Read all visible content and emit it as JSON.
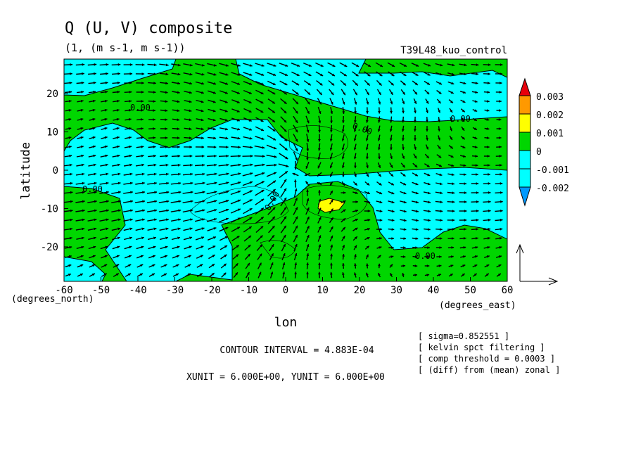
{
  "chart_data": {
    "type": "heatmap",
    "title": "Q (U, V) composite",
    "subtitle": "(1, (m s-1, m s-1))",
    "run_label": "T39L48_kuo_control",
    "xlabel": "lon",
    "ylabel": "latitude",
    "x_unit_label": "(degrees_east)",
    "y_unit_label": "(degrees_north)",
    "xlim": [
      -60,
      60
    ],
    "ylim": [
      -29,
      29
    ],
    "x_ticks": [
      -60,
      -50,
      -40,
      -30,
      -20,
      -10,
      0,
      10,
      20,
      30,
      40,
      50,
      60
    ],
    "x_tick_labels": [
      "-60",
      "-50",
      "-40",
      "-30",
      "-20",
      "-10",
      "0",
      "10",
      "20",
      "30",
      "40",
      "50",
      "60"
    ],
    "y_ticks": [
      20,
      10,
      0,
      -10,
      -20
    ],
    "y_tick_labels": [
      "20",
      "10",
      "0",
      "-10",
      "-20"
    ],
    "colorbar": {
      "levels": [
        0.003,
        0.002,
        0.001,
        0,
        -0.001,
        -0.002
      ],
      "labels": [
        "0.003",
        "0.002",
        "0.001",
        "0",
        "-0.001",
        "-0.002"
      ],
      "colors": [
        "#e8000b",
        "#ff9900",
        "#ffff00",
        "#00d600",
        "#00ffff",
        "#0099ff"
      ]
    },
    "contour_labels": [
      "0.00",
      "0.00",
      "0.00",
      "0.00",
      "0.00",
      "0.00"
    ],
    "contour_interval": "CONTOUR INTERVAL = 4.883E-04",
    "vector_units": "XUNIT = 6.000E+00, YUNIT = 6.000E+00",
    "notes": [
      "[ sigma=0.852551 ]",
      "[ kelvin spct filtering ]",
      "[ comp threshold = 0.0003 ]",
      "[ (diff) from (mean) zonal ]"
    ]
  }
}
